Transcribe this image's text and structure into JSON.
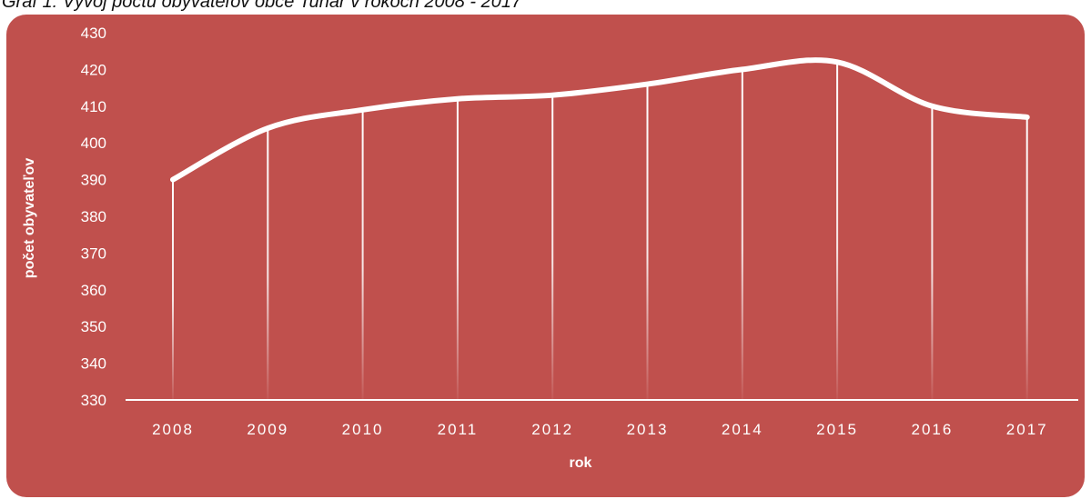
{
  "caption": "Graf 1: Vývoj počtu obyvateľov obce Tuhár v rokoch 2008 - 2017",
  "colors": {
    "panel": "#c0504d",
    "line": "#ffffff",
    "text": "#ffffff"
  },
  "chart_data": {
    "type": "line",
    "title": "",
    "xlabel": "rok",
    "ylabel": "počet obyvateľov",
    "categories": [
      "2008",
      "2009",
      "2010",
      "2011",
      "2012",
      "2013",
      "2014",
      "2015",
      "2016",
      "2017"
    ],
    "series": [
      {
        "values": [
          390,
          404,
          409,
          412,
          413,
          416,
          420,
          422,
          410,
          407
        ]
      }
    ],
    "ylim": [
      330,
      430
    ],
    "yticks": [
      "330",
      "340",
      "350",
      "360",
      "370",
      "380",
      "390",
      "400",
      "410",
      "420",
      "430"
    ],
    "smooth": true,
    "drop_lines": true,
    "grid": false,
    "legend": "none"
  }
}
